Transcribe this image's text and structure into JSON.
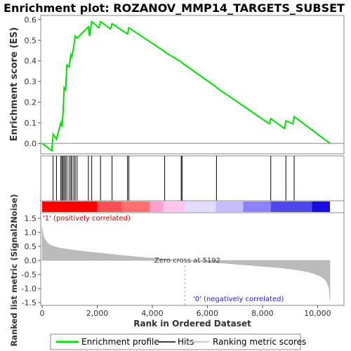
{
  "chart_data": [
    {
      "type": "line",
      "title": "Enrichment plot: ROZANOV_MMP14_TARGETS_SUBSET",
      "ylabel": "Enrichment score (ES)",
      "ylim": [
        -0.05,
        0.62
      ],
      "yticks": [
        0.0,
        0.1,
        0.2,
        0.3,
        0.4,
        0.5,
        0.6
      ],
      "ytick_labels": [
        "0.0",
        "0.1",
        "0.2",
        "0.3",
        "0.4",
        "0.5",
        "0.6"
      ],
      "xlim": [
        0,
        10500
      ],
      "grid": false,
      "series": [
        {
          "name": "Enrichment profile",
          "color": "#00e000",
          "x": [
            0,
            350,
            400,
            520,
            680,
            720,
            760,
            800,
            850,
            900,
            980,
            1040,
            1080,
            1150,
            1200,
            1270,
            1680,
            1720,
            1800,
            2060,
            2120,
            2480,
            2540,
            3100,
            3150,
            4450,
            4480,
            5050,
            5080,
            6300,
            6330,
            8250,
            8300,
            8800,
            8850,
            9100,
            9150,
            10450
          ],
          "y": [
            0.0,
            -0.035,
            0.045,
            0.02,
            0.1,
            0.08,
            0.15,
            0.27,
            0.26,
            0.38,
            0.37,
            0.43,
            0.42,
            0.47,
            0.52,
            0.51,
            0.565,
            0.52,
            0.59,
            0.56,
            0.59,
            0.555,
            0.58,
            0.53,
            0.56,
            0.445,
            0.44,
            0.395,
            0.39,
            0.275,
            0.27,
            0.095,
            0.12,
            0.072,
            0.11,
            0.095,
            0.13,
            0.0
          ]
        }
      ]
    },
    {
      "type": "scatter",
      "name": "hits",
      "series": [
        {
          "name": "Hits",
          "color": "#000000",
          "x": [
            400,
            520,
            680,
            720,
            760,
            800,
            850,
            900,
            980,
            1040,
            1080,
            1150,
            1200,
            1270,
            1680,
            1800,
            2120,
            2540,
            3100,
            3150,
            4450,
            5050,
            5080,
            6330,
            8300,
            8850,
            9150
          ]
        }
      ]
    },
    {
      "type": "heatmap",
      "name": "rank color bar",
      "segments": [
        {
          "from": 0,
          "to": 2000,
          "color": "#ff0000"
        },
        {
          "from": 2000,
          "to": 2900,
          "color": "#ff4d55"
        },
        {
          "from": 2900,
          "to": 3900,
          "color": "#ff7070"
        },
        {
          "from": 3900,
          "to": 4400,
          "color": "#ff9fd0"
        },
        {
          "from": 4400,
          "to": 5200,
          "color": "#ffc6ee"
        },
        {
          "from": 5200,
          "to": 6300,
          "color": "#e4dcff"
        },
        {
          "from": 6300,
          "to": 7300,
          "color": "#c5bcff"
        },
        {
          "from": 7300,
          "to": 8300,
          "color": "#8c82ff"
        },
        {
          "from": 8300,
          "to": 9800,
          "color": "#4f46f0"
        },
        {
          "from": 9800,
          "to": 10450,
          "color": "#1a0ce0"
        }
      ]
    },
    {
      "type": "area",
      "xlabel": "Rank in Ordered Dataset",
      "ylabel": "Ranked list metric (Signal2Noise)",
      "ylim": [
        -1.6,
        1.7
      ],
      "yticks": [
        -1.5,
        -1.0,
        -0.5,
        0.0,
        0.5,
        1.0,
        1.5
      ],
      "ytick_labels": [
        "-1.5",
        "-1.0",
        "-0.5",
        "0.0",
        "0.5",
        "1.0",
        "1.5"
      ],
      "xlim": [
        0,
        10500
      ],
      "xticks": [
        0,
        2000,
        4000,
        6000,
        8000,
        10000
      ],
      "xtick_labels": [
        "0",
        "2,000",
        "4,000",
        "6,000",
        "8,000",
        "10,000"
      ],
      "grid": false,
      "series": [
        {
          "name": "Ranking metric scores",
          "color": "#bbbbbb",
          "x": [
            0,
            20,
            60,
            120,
            200,
            300,
            450,
            650,
            900,
            1200,
            1600,
            2000,
            2500,
            3000,
            3500,
            4000,
            4500,
            5192,
            5600,
            6000,
            6500,
            7000,
            7500,
            8000,
            8500,
            9000,
            9400,
            9700,
            9900,
            10100,
            10250,
            10350,
            10420,
            10450
          ],
          "y": [
            1.2,
            1.0,
            0.85,
            0.72,
            0.62,
            0.55,
            0.49,
            0.44,
            0.4,
            0.36,
            0.31,
            0.27,
            0.22,
            0.17,
            0.12,
            0.08,
            0.04,
            0.0,
            -0.03,
            -0.06,
            -0.09,
            -0.13,
            -0.17,
            -0.21,
            -0.25,
            -0.3,
            -0.36,
            -0.42,
            -0.48,
            -0.56,
            -0.66,
            -0.8,
            -1.0,
            -1.42
          ]
        }
      ],
      "annotations": [
        {
          "text": "'1' (positively correlated)",
          "color": "#cc0000"
        },
        {
          "text": "Zero cross at 5192",
          "color": "#333333",
          "x": 5192
        },
        {
          "text": "'0' (negatively correlated)",
          "color": "#2222cc"
        }
      ]
    }
  ],
  "legend": {
    "items": [
      {
        "label": "Enrichment profile",
        "color": "#00e000"
      },
      {
        "label": "Hits",
        "color": "#000000"
      },
      {
        "label": "Ranking metric scores",
        "color": "#bbbbbb"
      }
    ],
    "placement": "bottom"
  }
}
